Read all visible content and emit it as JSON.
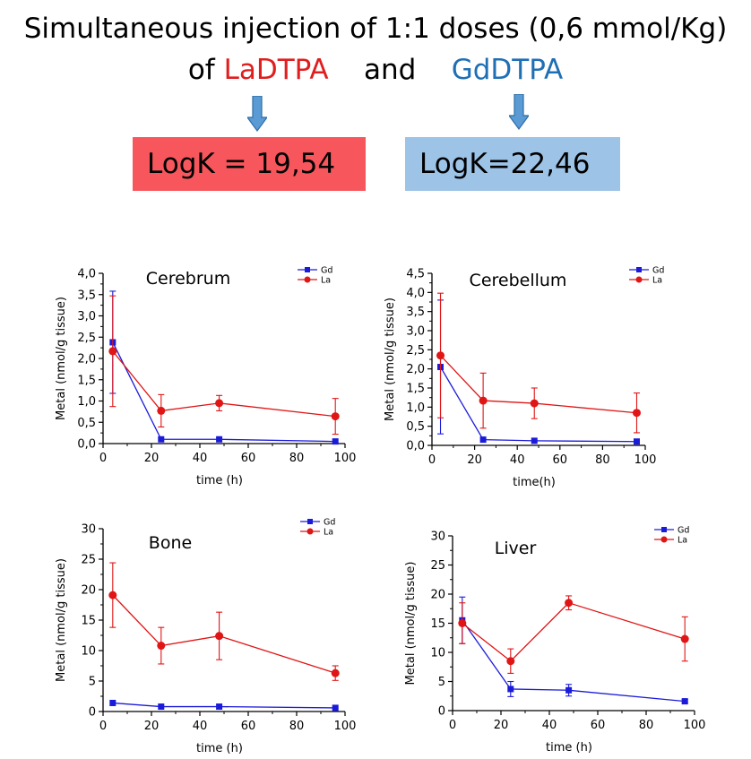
{
  "header": {
    "line1": "Simultaneous injection of 1:1 doses (0,6 mmol/Kg)",
    "line2_prefix": "of",
    "line2_la": "LaDTPA",
    "line2_and": "and",
    "line2_gd": "GdDTPA"
  },
  "boxes": {
    "la": "LogK = 19,54",
    "gd": "LogK=22,46"
  },
  "colors": {
    "gd": "#1a1adb",
    "la": "#e01515",
    "title_red": "#e01e1e",
    "title_blue": "#1f6fb5",
    "box_red": "#f7565c",
    "box_blue": "#9dc3e6",
    "arrow": "#5b9bd5"
  },
  "chart_data": [
    {
      "type": "line",
      "title": "Cerebrum",
      "xlabel": "time (h)",
      "ylabel": "Metal (nmol/g tissue)",
      "xlim": [
        0,
        100
      ],
      "ylim": [
        0,
        4.0
      ],
      "xticks": [
        0,
        20,
        40,
        60,
        80,
        100
      ],
      "xtick_labels": [
        "0",
        "20",
        "40",
        "60",
        "80",
        "100"
      ],
      "yticks": [
        0,
        0.5,
        1.0,
        1.5,
        2.0,
        2.5,
        3.0,
        3.5,
        4.0
      ],
      "ytick_labels": [
        "0,0",
        "0,5",
        "1,0",
        "1,5",
        "2,0",
        "2,5",
        "3,0",
        "3,5",
        "4,0"
      ],
      "legend": "top-right",
      "series": [
        {
          "name": "Gd",
          "x": [
            4,
            24,
            48,
            96
          ],
          "y": [
            2.38,
            0.1,
            0.1,
            0.05
          ],
          "err": [
            1.2,
            0,
            0,
            0
          ]
        },
        {
          "name": "La",
          "x": [
            4,
            24,
            48,
            96
          ],
          "y": [
            2.17,
            0.77,
            0.95,
            0.64
          ],
          "err": [
            1.3,
            0.38,
            0.18,
            0.42
          ]
        }
      ]
    },
    {
      "type": "line",
      "title": "Cerebellum",
      "xlabel": "time(h)",
      "ylabel": "Metal (nmol/g tissue)",
      "xlim": [
        0,
        100
      ],
      "ylim": [
        0,
        4.5
      ],
      "xticks": [
        0,
        20,
        40,
        60,
        80,
        100
      ],
      "xtick_labels": [
        "0",
        "20",
        "40",
        "60",
        "80",
        "100"
      ],
      "yticks": [
        0,
        0.5,
        1.0,
        1.5,
        2.0,
        2.5,
        3.0,
        3.5,
        4.0,
        4.5
      ],
      "ytick_labels": [
        "0,0",
        "0,5",
        "1,0",
        "1,5",
        "2,0",
        "2,5",
        "3,0",
        "3,5",
        "4,0",
        "4,5"
      ],
      "legend": "top-right",
      "series": [
        {
          "name": "Gd",
          "x": [
            4,
            24,
            48,
            96
          ],
          "y": [
            2.05,
            0.15,
            0.12,
            0.1
          ],
          "err": [
            1.75,
            0,
            0,
            0
          ]
        },
        {
          "name": "La",
          "x": [
            4,
            24,
            48,
            96
          ],
          "y": [
            2.35,
            1.17,
            1.1,
            0.85
          ],
          "err": [
            1.63,
            0.72,
            0.4,
            0.52
          ]
        }
      ]
    },
    {
      "type": "line",
      "title": "Bone",
      "xlabel": "time (h)",
      "ylabel": "Metal (nmol/g tissue)",
      "xlim": [
        0,
        100
      ],
      "ylim": [
        0,
        30
      ],
      "xticks": [
        0,
        20,
        40,
        60,
        80,
        100
      ],
      "xtick_labels": [
        "0",
        "20",
        "40",
        "60",
        "80",
        "100"
      ],
      "yticks": [
        0,
        5,
        10,
        15,
        20,
        25,
        30
      ],
      "ytick_labels": [
        "0",
        "5",
        "10",
        "15",
        "20",
        "25",
        "30"
      ],
      "legend": "top-right",
      "series": [
        {
          "name": "Gd",
          "x": [
            4,
            24,
            48,
            96
          ],
          "y": [
            1.4,
            0.8,
            0.8,
            0.6
          ],
          "err": [
            0,
            0,
            0,
            0
          ]
        },
        {
          "name": "La",
          "x": [
            4,
            24,
            48,
            96
          ],
          "y": [
            19.1,
            10.8,
            12.4,
            6.3
          ],
          "err": [
            5.3,
            3.0,
            3.9,
            1.2
          ]
        }
      ]
    },
    {
      "type": "line",
      "title": "Liver",
      "xlabel": "time (h)",
      "ylabel": "Metal (nmol/g tissue)",
      "xlim": [
        0,
        100
      ],
      "ylim": [
        0,
        30
      ],
      "xticks": [
        0,
        20,
        40,
        60,
        80,
        100
      ],
      "xtick_labels": [
        "0",
        "20",
        "40",
        "60",
        "80",
        "100"
      ],
      "yticks": [
        0,
        5,
        10,
        15,
        20,
        25,
        30
      ],
      "ytick_labels": [
        "0",
        "5",
        "10",
        "15",
        "20",
        "25",
        "30"
      ],
      "legend": "top-right",
      "series": [
        {
          "name": "Gd",
          "x": [
            4,
            24,
            48,
            96
          ],
          "y": [
            15.5,
            3.7,
            3.5,
            1.6
          ],
          "err": [
            4.0,
            1.3,
            1.0,
            0.3
          ]
        },
        {
          "name": "La",
          "x": [
            4,
            24,
            48,
            96
          ],
          "y": [
            15.0,
            8.5,
            18.5,
            12.3
          ],
          "err": [
            3.5,
            2.1,
            1.2,
            3.8
          ]
        }
      ]
    }
  ]
}
